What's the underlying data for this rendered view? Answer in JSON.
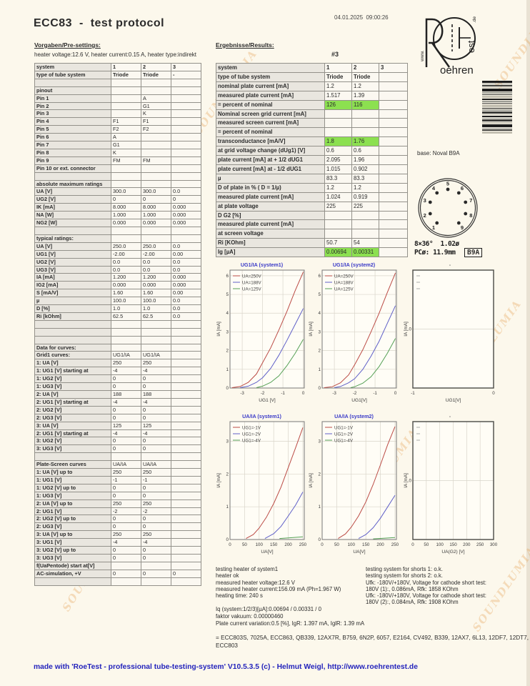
{
  "header": {
    "title": "ECC83  -  test protocol",
    "timestamp": "04.01.2025  09:00:26",
    "presettings_label": "Vorgaben/Pre-settings:",
    "results_label": "Ergebnisse/Results:",
    "heater_line": "heater voltage:12.6 V, heater current:0.15 A, heater type:indirekt",
    "tube_number": "#3"
  },
  "logo": {
    "www": "www.",
    "oehren": "oehren",
    "est": "est",
    "de": ".de"
  },
  "watermark": {
    "text": "SOUNDLUMIA"
  },
  "left_table": {
    "rows": [
      [
        "system",
        "1",
        "2",
        "3",
        "b"
      ],
      [
        "type of tube system",
        "Triode",
        "Triode",
        "-",
        "b"
      ],
      [
        "",
        "",
        "",
        ""
      ],
      [
        "pinout",
        "",
        "",
        ""
      ],
      [
        "Pin 1",
        "",
        "A",
        ""
      ],
      [
        "Pin 2",
        "",
        "G1",
        ""
      ],
      [
        "Pin 3",
        "",
        "K",
        ""
      ],
      [
        "Pin 4",
        "F1",
        "F1",
        ""
      ],
      [
        "Pin 5",
        "F2",
        "F2",
        ""
      ],
      [
        "Pin 6",
        "A",
        "",
        ""
      ],
      [
        "Pin 7",
        "G1",
        "",
        ""
      ],
      [
        "Pin 8",
        "K",
        "",
        ""
      ],
      [
        "Pin 9",
        "FM",
        "FM",
        ""
      ],
      [
        "Pin 10 or ext. connector",
        "",
        "",
        ""
      ],
      [
        "",
        "",
        "",
        ""
      ],
      [
        "absolute maximum ratings",
        "",
        "",
        ""
      ],
      [
        "UA [V]",
        "300.0",
        "300.0",
        "0.0"
      ],
      [
        "UG2 [V]",
        "0",
        "0",
        "0"
      ],
      [
        "IK [mA]",
        "8.000",
        "8.000",
        "0.000"
      ],
      [
        "NA [W]",
        "1.000",
        "1.000",
        "0.000"
      ],
      [
        "NG2 [W]",
        "0.000",
        "0.000",
        "0.000"
      ],
      [
        "",
        "",
        "",
        ""
      ],
      [
        "typical ratings:",
        "",
        "",
        ""
      ],
      [
        "UA [V]",
        "250.0",
        "250.0",
        "0.0"
      ],
      [
        "UG1 [V]",
        "-2.00",
        "-2.00",
        "0.00"
      ],
      [
        "UG2 [V]",
        "0.0",
        "0.0",
        "0.0"
      ],
      [
        "UG3 [V]",
        "0.0",
        "0.0",
        "0.0"
      ],
      [
        "IA [mA]",
        "1.200",
        "1.200",
        "0.000"
      ],
      [
        "IG2 [mA]",
        "0.000",
        "0.000",
        "0.000"
      ],
      [
        "S [mA/V]",
        "1.60",
        "1.60",
        "0.00"
      ],
      [
        "µ",
        "100.0",
        "100.0",
        "0.0"
      ],
      [
        "D [%]",
        "1.0",
        "1.0",
        "0.0"
      ],
      [
        "Ri [kOhm]",
        "62.5",
        "62.5",
        "0.0"
      ],
      [
        "",
        "",
        "",
        ""
      ],
      [
        "",
        "",
        "",
        ""
      ],
      [
        "",
        "",
        "",
        ""
      ],
      [
        "Data for curves:",
        "",
        "",
        ""
      ],
      [
        "Grid1 curves:",
        "UG1/IA",
        "UG1/IA",
        ""
      ],
      [
        "1: UA [V]",
        "250",
        "250",
        ""
      ],
      [
        "1: UG1 [V] starting at",
        "-4",
        "-4",
        ""
      ],
      [
        "1: UG2 [V]",
        "0",
        "0",
        ""
      ],
      [
        "1: UG3 [V]",
        "0",
        "0",
        ""
      ],
      [
        "2: UA [V]",
        "188",
        "188",
        ""
      ],
      [
        "2: UG1 [V] starting at",
        "-4",
        "-4",
        ""
      ],
      [
        "2: UG2 [V]",
        "0",
        "0",
        ""
      ],
      [
        "2: UG3 [V]",
        "0",
        "0",
        ""
      ],
      [
        "3: UA [V]",
        "125",
        "125",
        ""
      ],
      [
        "2: UG1 [V] starting at",
        "-4",
        "-4",
        ""
      ],
      [
        "3: UG2 [V]",
        "0",
        "0",
        ""
      ],
      [
        "3: UG3 [V]",
        "0",
        "0",
        ""
      ],
      [
        "",
        "",
        "",
        ""
      ],
      [
        "Plate-Screen curves",
        "UA/IA",
        "UA/IA",
        ""
      ],
      [
        "1: UA [V] up to",
        "250",
        "250",
        ""
      ],
      [
        "1: UG1 [V]",
        "-1",
        "-1",
        ""
      ],
      [
        "1: UG2 [V] up to",
        "0",
        "0",
        ""
      ],
      [
        "1: UG3 [V]",
        "0",
        "0",
        ""
      ],
      [
        "2: UA [V] up to",
        "250",
        "250",
        ""
      ],
      [
        "2: UG1 [V]",
        "-2",
        "-2",
        ""
      ],
      [
        "2: UG2 [V] up to",
        "0",
        "0",
        ""
      ],
      [
        "2: UG3 [V]",
        "0",
        "0",
        ""
      ],
      [
        "3: UA [V] up to",
        "250",
        "250",
        ""
      ],
      [
        "3: UG1 [V]",
        "-4",
        "-4",
        ""
      ],
      [
        "3: UG2 [V] up to",
        "0",
        "0",
        ""
      ],
      [
        "3: UG3 [V]",
        "0",
        "0",
        ""
      ],
      [
        "f(UaPentode) start at[V]",
        "",
        "",
        ""
      ],
      [
        "AC-simulation, +V",
        "0",
        "0",
        "0"
      ],
      [
        "",
        "",
        "",
        ""
      ]
    ]
  },
  "right_table": {
    "rows": [
      [
        "system",
        "1",
        "2",
        "3",
        "b"
      ],
      [
        "type of tube system",
        "Triode",
        "Triode",
        "",
        "b"
      ],
      [
        "nominal plate current [mA]",
        "1.2",
        "1.2",
        ""
      ],
      [
        "measured plate current [mA]",
        "1.517",
        "1.39",
        ""
      ],
      [
        "= percent of nominal",
        "126",
        "116",
        "",
        "g"
      ],
      [
        "Nominal screen grid current [mA]",
        "",
        "",
        ""
      ],
      [
        "measured screen current [mA]",
        "",
        "",
        ""
      ],
      [
        "= percent of nominal",
        "",
        "",
        ""
      ],
      [
        "transconductance [mA/V]",
        "1.8",
        "1.76",
        "",
        "g"
      ],
      [
        "at grid voltage change (dUg1) [V]",
        "0.6",
        "0.6",
        ""
      ],
      [
        "plate current [mA] at + 1/2 dUG1",
        "2.095",
        "1.96",
        ""
      ],
      [
        "plate current [mA] at - 1/2 dUG1",
        "1.015",
        "0.902",
        ""
      ],
      [
        "µ",
        "83.3",
        "83.3",
        ""
      ],
      [
        "D of plate in % ( D = 1/µ)",
        "1.2",
        "1.2",
        ""
      ],
      [
        "measured plate current [mA]",
        "1.024",
        "0.919",
        ""
      ],
      [
        "at plate voltage",
        "225",
        "225",
        ""
      ],
      [
        "D G2 [%]",
        "",
        "",
        ""
      ],
      [
        "measured plate current [mA]",
        "",
        "",
        ""
      ],
      [
        "at screen voltage",
        "",
        "",
        ""
      ],
      [
        "Ri [KOhm]",
        "50.7",
        "54",
        ""
      ],
      [
        "Ig [µA]",
        "0.00694",
        "0.00331",
        "",
        "g"
      ]
    ]
  },
  "socket": {
    "base_label": "base: Noval B9A",
    "pins": [
      "1",
      "2",
      "3",
      "4",
      "5",
      "6",
      "7",
      "8",
      "9"
    ],
    "dim1": "8×36°  1.02ø",
    "dim2": "PCø: 11.9mm",
    "box": "B9A"
  },
  "chart_data": [
    {
      "type": "line",
      "title": "UG1/IA (system1)",
      "xlabel": "UG1 [V]",
      "ylabel": "IA [mA]",
      "xlim": [
        -3.6,
        0.05
      ],
      "ylim": [
        0,
        6.3
      ],
      "xticks": [
        -3,
        -2,
        -1,
        0
      ],
      "yticks": [
        0,
        1,
        2,
        3,
        4,
        5,
        6
      ],
      "grid": "both",
      "legend_pos": "top-left",
      "series": [
        {
          "name": "UA=250V",
          "color": "#bb4b45",
          "points": [
            [
              -3.5,
              0.02
            ],
            [
              -3.1,
              0.08
            ],
            [
              -2.7,
              0.3
            ],
            [
              -2.3,
              0.75
            ],
            [
              -2,
              1.35
            ],
            [
              -1.6,
              2.15
            ],
            [
              -1.2,
              3.1
            ],
            [
              -0.8,
              4.1
            ],
            [
              -0.4,
              5.2
            ],
            [
              0,
              6.2
            ]
          ]
        },
        {
          "name": "UA=188V",
          "color": "#5f5fc8",
          "points": [
            [
              -3.1,
              0.02
            ],
            [
              -2.7,
              0.1
            ],
            [
              -2.3,
              0.3
            ],
            [
              -2,
              0.55
            ],
            [
              -1.6,
              1.05
            ],
            [
              -1.2,
              1.75
            ],
            [
              -0.8,
              2.55
            ],
            [
              -0.4,
              3.4
            ],
            [
              0,
              4.25
            ]
          ]
        },
        {
          "name": "UA=125V",
          "color": "#55a055",
          "points": [
            [
              -2.3,
              0.02
            ],
            [
              -2,
              0.1
            ],
            [
              -1.6,
              0.3
            ],
            [
              -1.2,
              0.65
            ],
            [
              -0.8,
              1.2
            ],
            [
              -0.4,
              1.85
            ],
            [
              0,
              2.6
            ]
          ]
        }
      ]
    },
    {
      "type": "line",
      "title": "UG1/IA (system2)",
      "xlabel": "UG1[V]",
      "ylabel": "IA [mA]",
      "xlim": [
        -3.6,
        0.05
      ],
      "ylim": [
        0,
        6.3
      ],
      "xticks": [
        -3,
        -2,
        -1,
        0
      ],
      "yticks": [
        0,
        1,
        2,
        3,
        4,
        5,
        6
      ],
      "grid": "both",
      "legend_pos": "top-left",
      "series": [
        {
          "name": "UA=250V",
          "color": "#bb4b45",
          "points": [
            [
              -3.5,
              0.02
            ],
            [
              -3.1,
              0.07
            ],
            [
              -2.7,
              0.28
            ],
            [
              -2.3,
              0.7
            ],
            [
              -2,
              1.25
            ],
            [
              -1.6,
              2.05
            ],
            [
              -1.2,
              3.0
            ],
            [
              -0.8,
              4.0
            ],
            [
              -0.4,
              5.1
            ],
            [
              0,
              6.15
            ]
          ]
        },
        {
          "name": "UA=188V",
          "color": "#5f5fc8",
          "points": [
            [
              -3,
              0.02
            ],
            [
              -2.7,
              0.08
            ],
            [
              -2.3,
              0.28
            ],
            [
              -2,
              0.5
            ],
            [
              -1.6,
              1.0
            ],
            [
              -1.2,
              1.7
            ],
            [
              -0.8,
              2.5
            ],
            [
              -0.4,
              3.45
            ],
            [
              0,
              4.4
            ]
          ]
        },
        {
          "name": "UA=125V",
          "color": "#55a055",
          "points": [
            [
              -2.2,
              0.02
            ],
            [
              -2,
              0.07
            ],
            [
              -1.6,
              0.26
            ],
            [
              -1.2,
              0.6
            ],
            [
              -0.8,
              1.15
            ],
            [
              -0.4,
              1.85
            ],
            [
              0,
              2.65
            ]
          ]
        }
      ]
    },
    {
      "type": "line",
      "title": "-",
      "xlabel": "UG1[V]",
      "ylabel": "IA [mA]",
      "xlim": [
        -1,
        0
      ],
      "ylim": [
        -1,
        1
      ],
      "xticks": [
        -1,
        0
      ],
      "yticks": [
        0
      ],
      "grid": "h",
      "series": []
    },
    {
      "type": "line",
      "title": "UA/IA (system1)",
      "xlabel": "UA[V]",
      "ylabel": "IA [mA]",
      "xlim": [
        0,
        255
      ],
      "ylim": [
        0,
        3.6
      ],
      "xticks": [
        0,
        50,
        100,
        150,
        200,
        250
      ],
      "yticks": [
        0,
        1,
        2,
        3
      ],
      "grid": "both",
      "legend_pos": "top-left",
      "series": [
        {
          "name": "UG1=-1V",
          "color": "#bb4b45",
          "points": [
            [
              55,
              0.03
            ],
            [
              80,
              0.15
            ],
            [
              100,
              0.35
            ],
            [
              125,
              0.68
            ],
            [
              150,
              1.1
            ],
            [
              175,
              1.6
            ],
            [
              200,
              2.2
            ],
            [
              225,
              2.8
            ],
            [
              250,
              3.42
            ]
          ]
        },
        {
          "name": "UG1=-2V",
          "color": "#5f5fc8",
          "points": [
            [
              120,
              0.03
            ],
            [
              150,
              0.18
            ],
            [
              175,
              0.4
            ],
            [
              200,
              0.72
            ],
            [
              225,
              1.05
            ],
            [
              250,
              1.45
            ]
          ]
        },
        {
          "name": "UG1=-4V",
          "color": "#55a055",
          "points": [
            [
              170,
              0.03
            ],
            [
              200,
              0.05
            ],
            [
              250,
              0.08
            ]
          ]
        }
      ]
    },
    {
      "type": "line",
      "title": "UA/IA (system2)",
      "xlabel": "UA[V]",
      "ylabel": "IA [mA]",
      "xlim": [
        0,
        255
      ],
      "ylim": [
        0,
        3.6
      ],
      "xticks": [
        0,
        50,
        100,
        150,
        200,
        250
      ],
      "yticks": [
        0,
        1,
        2,
        3
      ],
      "grid": "both",
      "legend_pos": "top-left",
      "series": [
        {
          "name": "UG1=-1V",
          "color": "#bb4b45",
          "points": [
            [
              55,
              0.03
            ],
            [
              80,
              0.17
            ],
            [
              100,
              0.38
            ],
            [
              125,
              0.72
            ],
            [
              150,
              1.15
            ],
            [
              175,
              1.68
            ],
            [
              200,
              2.28
            ],
            [
              225,
              2.9
            ],
            [
              250,
              3.45
            ]
          ]
        },
        {
          "name": "UG1=-2V",
          "color": "#5f5fc8",
          "points": [
            [
              125,
              0.03
            ],
            [
              150,
              0.15
            ],
            [
              175,
              0.36
            ],
            [
              200,
              0.65
            ],
            [
              225,
              1.0
            ],
            [
              250,
              1.35
            ]
          ]
        },
        {
          "name": "UG1=-4V",
          "color": "#55a055",
          "points": [
            [
              175,
              0.02
            ],
            [
              250,
              0.06
            ]
          ]
        }
      ]
    },
    {
      "type": "line",
      "title": "-",
      "xlabel": "UA(G2) [V]",
      "ylabel": "IA [mA]",
      "xlim": [
        0,
        300
      ],
      "ylim": [
        -1,
        1
      ],
      "xticks": [
        0,
        50,
        100,
        150,
        200,
        250,
        300
      ],
      "yticks": [
        0
      ],
      "grid": "both",
      "series": []
    }
  ],
  "notes": {
    "left": [
      "testing heater of system1",
      "heater ok",
      "measured heater voltage:12.6 V",
      "measured heater current:156.09 mA (Ph=1.967 W)",
      "heating time: 240 s"
    ],
    "right": [
      "testing system for shorts 1: o.k.",
      "testing system for shorts 2: o.k.",
      "Ufk: -180V/+180V, Voltage for cathode short test:",
      "180V (1):, 0.086mA, Rfk: 1858 KOhm",
      "Ufk: -180V/+180V, Voltage for cathode short test:",
      "180V (2):, 0.084mA, Rfk: 1908 KOhm"
    ],
    "mid": [
      "Iq (system:1/2/3)[µA]:0.00694 / 0.00331 / 0",
      "faktor vakuum: 0.00000460",
      "Plate current variation:0.5 [%], IgR: 1.397 mA, IglR: 1.39 mA"
    ],
    "equivalents": "= ECC803S,  7025A,  ECC863,  QB339,  12AX7R,  B759,  6N2P,  6057,  E2164,  CV492,  B339, 12AX7, 6L13, 12DF7, 12DT7, ECC803"
  },
  "footer": "made with 'RoeTest - professional tube-testing-system' V10.5.3.5 (c) - Helmut Weigl, http://www.roehrentest.de"
}
